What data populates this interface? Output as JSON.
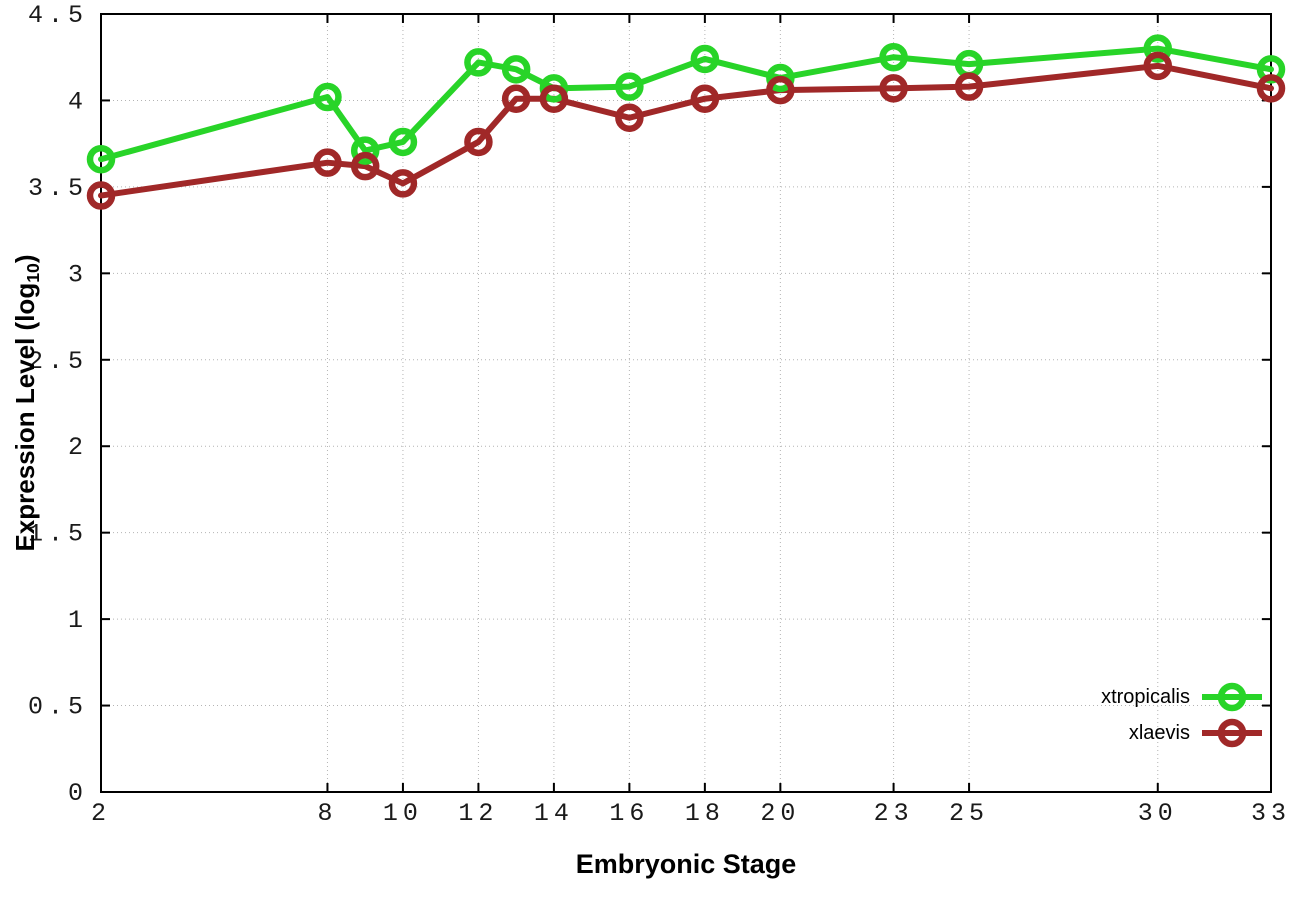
{
  "chart_data": {
    "type": "line",
    "title": "",
    "xlabel": "Embryonic Stage",
    "ylabel": "Expression Level (log10)",
    "ylabel_parts": {
      "main": "Expression Level (log",
      "sub": "10",
      "end": ")"
    },
    "x": [
      2,
      8,
      9,
      10,
      12,
      13,
      14,
      16,
      18,
      20,
      23,
      25,
      30,
      33
    ],
    "xticks": [
      2,
      8,
      10,
      12,
      14,
      16,
      18,
      20,
      23,
      25,
      30,
      33
    ],
    "yticks": [
      0,
      0.5,
      1,
      1.5,
      2,
      2.5,
      3,
      3.5,
      4,
      4.5
    ],
    "xlim": [
      2,
      33
    ],
    "ylim": [
      0,
      4.5
    ],
    "grid": "dotted",
    "legend_position": "bottom-right",
    "marker": "open-circle",
    "series": [
      {
        "name": "xtropicalis",
        "color": "#28d428",
        "values": [
          3.66,
          4.02,
          3.71,
          3.76,
          4.22,
          4.18,
          4.07,
          4.08,
          4.24,
          4.13,
          4.25,
          4.21,
          4.3,
          4.18
        ]
      },
      {
        "name": "xlaevis",
        "color": "#a02828",
        "values": [
          3.45,
          3.64,
          3.62,
          3.52,
          3.76,
          4.01,
          4.01,
          3.9,
          4.01,
          4.06,
          4.07,
          4.08,
          4.2,
          4.07
        ]
      }
    ]
  },
  "colors": {
    "background": "#ffffff",
    "axis": "#000000",
    "grid": "#b4b4b4",
    "tick_label": "#1a1a1a"
  }
}
